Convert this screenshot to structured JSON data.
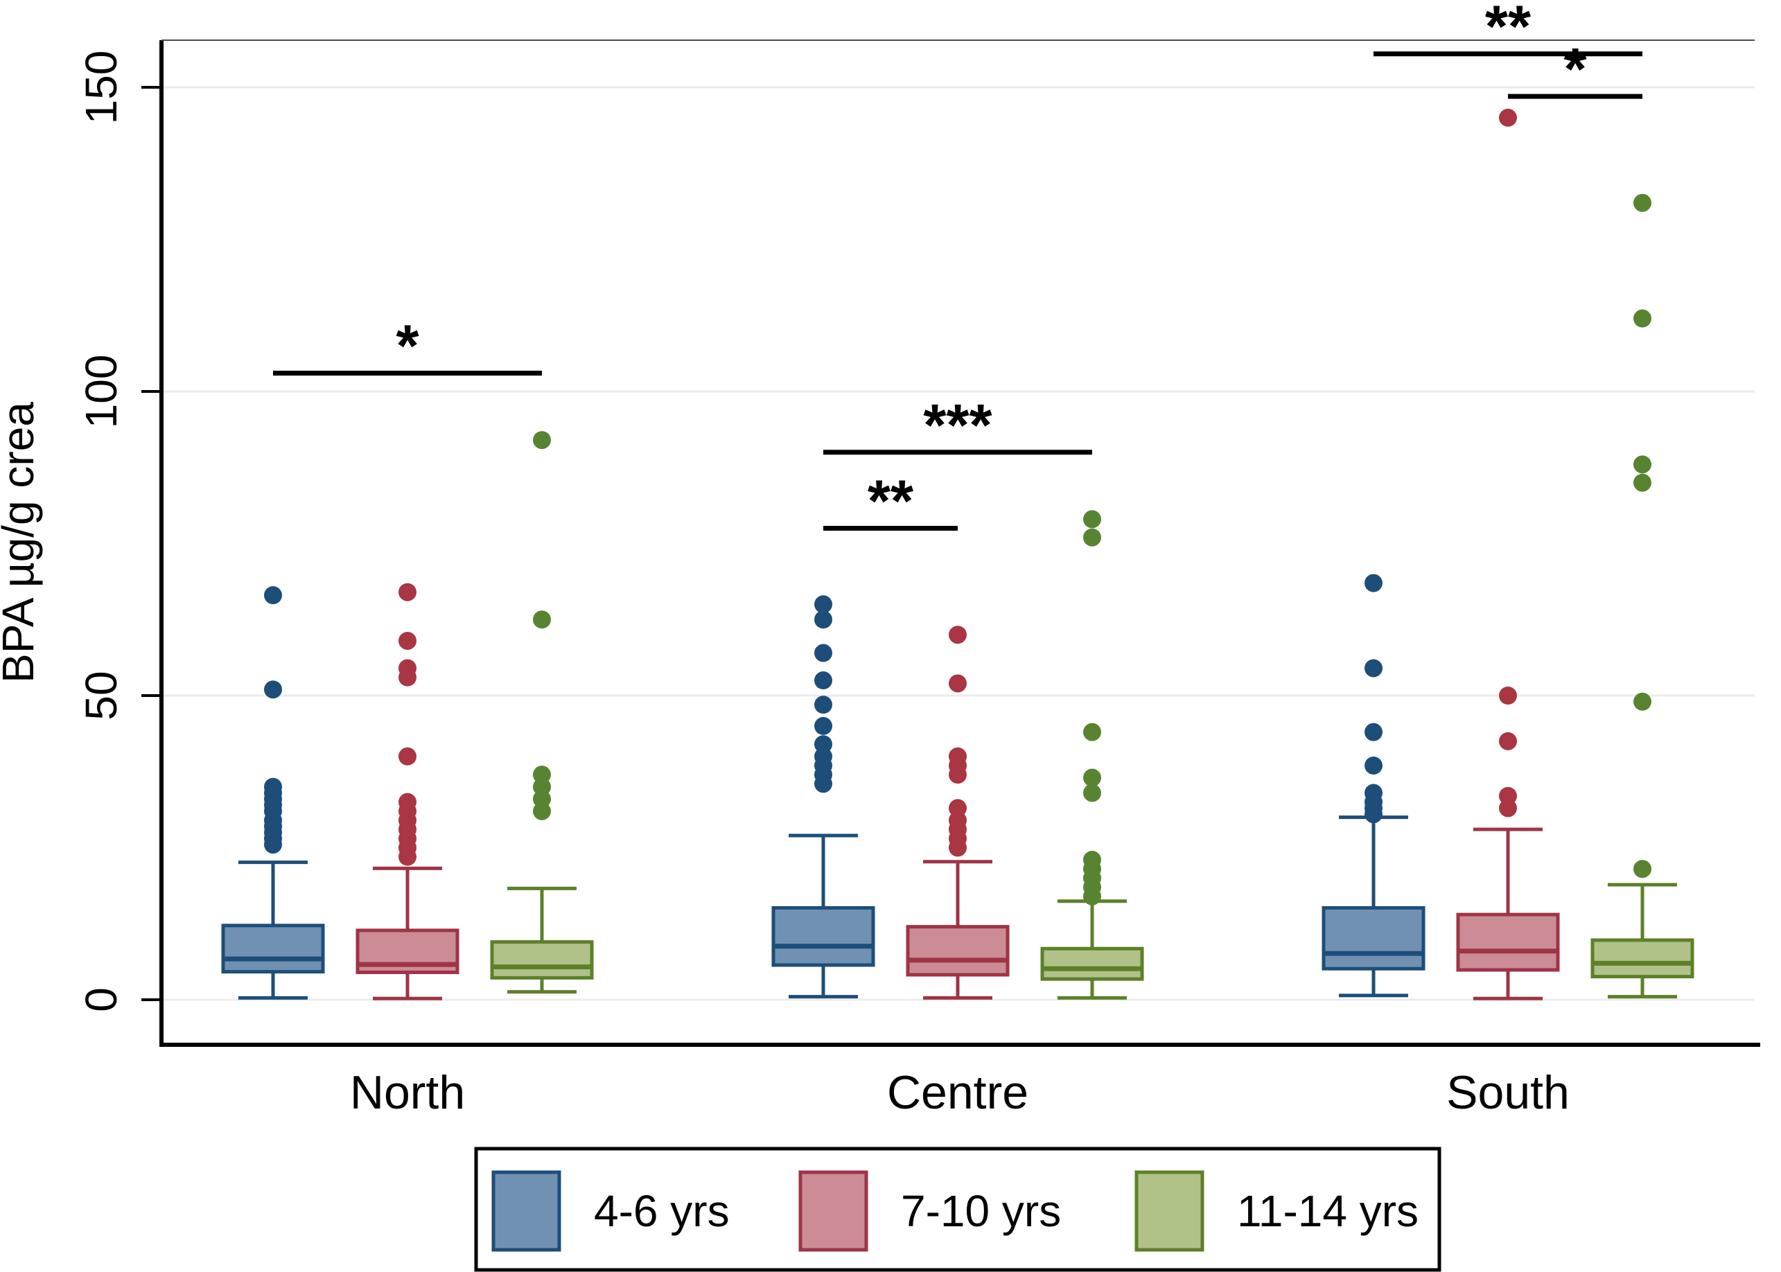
{
  "chart_data": {
    "type": "box",
    "title": "",
    "ylabel": "BPA µg/g crea",
    "xlabel": "",
    "yticks": [
      0,
      50,
      100,
      150
    ],
    "ylim": [
      -7.5,
      158
    ],
    "grid": "horizontal-light",
    "legend_position": "bottom",
    "groups": [
      "North",
      "Centre",
      "South"
    ],
    "series": [
      {
        "name": "4-6 yrs",
        "fill": "#7191b3",
        "stroke": "#1d4e79",
        "dot": "#1d4e79",
        "boxes": [
          {
            "group": "North",
            "lo": 0.3,
            "q1": 4.6,
            "med": 6.7,
            "q3": 12.2,
            "hi": 22.6,
            "outliers": [
              25.5,
              26.5,
              27.5,
              28.5,
              29.5,
              31,
              32,
              33,
              34,
              35,
              51,
              66.5
            ]
          },
          {
            "group": "Centre",
            "lo": 0.5,
            "q1": 5.7,
            "med": 8.8,
            "q3": 15.1,
            "hi": 27,
            "outliers": [
              35.5,
              37,
              38.5,
              40,
              42,
              45,
              48.5,
              52.5,
              57,
              62.5,
              65
            ]
          },
          {
            "group": "South",
            "lo": 0.7,
            "q1": 5.1,
            "med": 7.6,
            "q3": 15.1,
            "hi": 30,
            "outliers": [
              30.5,
              31.5,
              32.5,
              34,
              38.5,
              44,
              54.5,
              68.5
            ]
          }
        ]
      },
      {
        "name": "7-10 yrs",
        "fill": "#cb8c95",
        "stroke": "#9f3446",
        "dot": "#a93642",
        "boxes": [
          {
            "group": "North",
            "lo": 0.2,
            "q1": 4.5,
            "med": 5.8,
            "q3": 11.4,
            "hi": 21.6,
            "outliers": [
              23.5,
              25,
              26.5,
              28,
              29.5,
              31,
              32.5,
              40,
              53,
              54.5,
              59,
              67
            ]
          },
          {
            "group": "Centre",
            "lo": 0.3,
            "q1": 4.1,
            "med": 6.5,
            "q3": 12.0,
            "hi": 22.7,
            "outliers": [
              25,
              26.5,
              28,
              29.5,
              31.5,
              37,
              38.5,
              40,
              52,
              60
            ]
          },
          {
            "group": "South",
            "lo": 0.2,
            "q1": 4.9,
            "med": 8.0,
            "q3": 14.0,
            "hi": 28,
            "outliers": [
              31.5,
              33.5,
              42.5,
              50,
              145
            ]
          }
        ]
      },
      {
        "name": "11-14 yrs",
        "fill": "#b0c287",
        "stroke": "#5d8029",
        "dot": "#588432",
        "boxes": [
          {
            "group": "North",
            "lo": 1.3,
            "q1": 3.6,
            "med": 5.4,
            "q3": 9.5,
            "hi": 18.3,
            "outliers": [
              31,
              33,
              35,
              37,
              62.5,
              92
            ]
          },
          {
            "group": "Centre",
            "lo": 0.3,
            "q1": 3.4,
            "med": 5.1,
            "q3": 8.4,
            "hi": 16.2,
            "outliers": [
              17,
              18.5,
              20,
              21.5,
              23,
              34,
              36.5,
              44,
              76,
              79
            ]
          },
          {
            "group": "South",
            "lo": 0.5,
            "q1": 3.8,
            "med": 6.0,
            "q3": 9.8,
            "hi": 18.9,
            "outliers": [
              21.5,
              49,
              85,
              88,
              112,
              131
            ]
          }
        ]
      }
    ],
    "significance": [
      {
        "group": "North",
        "between": [
          "4-6 yrs",
          "11-14 yrs"
        ],
        "label": "*",
        "height": 103
      },
      {
        "group": "Centre",
        "between": [
          "4-6 yrs",
          "7-10 yrs"
        ],
        "label": "**",
        "height": 77.5
      },
      {
        "group": "Centre",
        "between": [
          "4-6 yrs",
          "11-14 yrs"
        ],
        "label": "***",
        "height": 90
      },
      {
        "group": "South",
        "between": [
          "4-6 yrs",
          "11-14 yrs"
        ],
        "label": "**",
        "height": 155.5
      },
      {
        "group": "South",
        "between": [
          "7-10 yrs",
          "11-14 yrs"
        ],
        "label": "*",
        "height": 148.5
      }
    ],
    "legend": {
      "entries": [
        "4-6 yrs",
        "7-10 yrs",
        "11-14 yrs"
      ]
    },
    "colors": {
      "gridline": "#ebebeb",
      "axis": "#000000",
      "frame_top": "#4d4d4d",
      "background": "#ffffff"
    }
  }
}
